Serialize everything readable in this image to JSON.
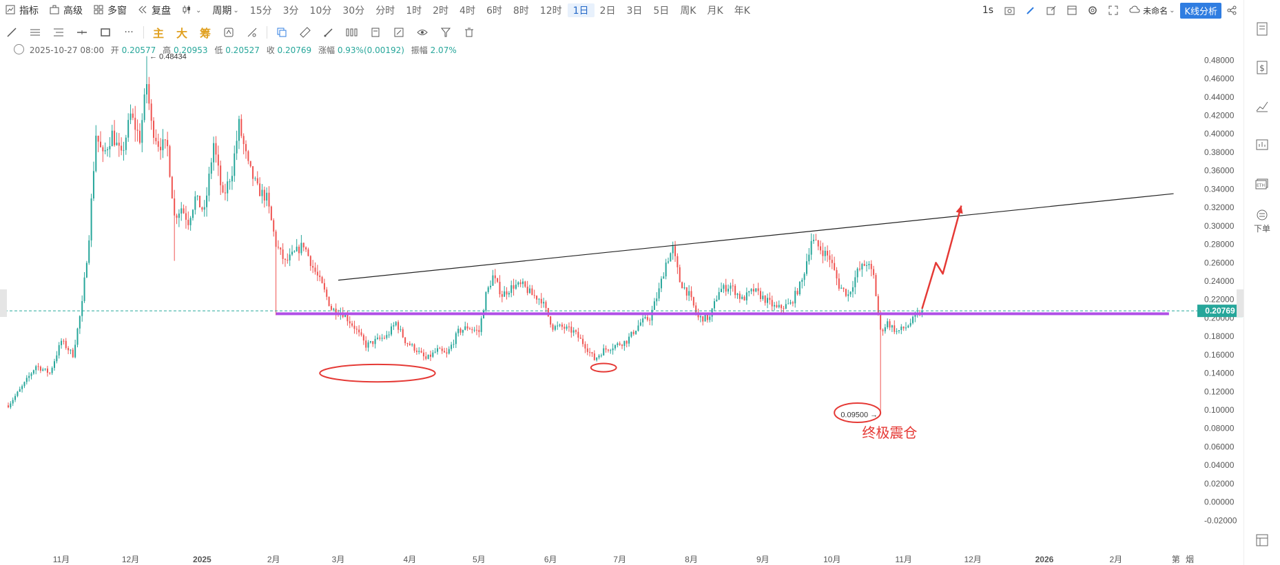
{
  "toolbar": {
    "indicator": "指标",
    "advanced": "高级",
    "multiwindow": "多窗",
    "replay": "复盘",
    "period": "周期",
    "periods": [
      "15分",
      "3分",
      "10分",
      "30分",
      "分时",
      "1时",
      "2时",
      "4时",
      "6时",
      "8时",
      "12时",
      "1日",
      "2日",
      "3日",
      "5日",
      "周K",
      "月K",
      "年K"
    ],
    "active_period": "1日",
    "interval": "1s",
    "layout_name": "未命名",
    "kline_analysis": "K线分析"
  },
  "drawing_tools": {
    "main": "主",
    "big": "大",
    "chips": "筹"
  },
  "info": {
    "datetime": "2025-10-27 08:00",
    "open_label": "开",
    "open": "0.20577",
    "high_label": "高",
    "high": "0.20953",
    "low_label": "低",
    "low": "0.20527",
    "close_label": "收",
    "close": "0.20769",
    "change_label": "涨幅",
    "change": "0.93%(0.00192)",
    "amplitude_label": "振幅",
    "amplitude": "2.07%"
  },
  "sidebar": {
    "order_label": "下单"
  },
  "colors": {
    "up": "#26a69a",
    "down": "#ef5350",
    "support": "#b04fe6",
    "annotation": "#e53935",
    "trendline": "#222222",
    "price_tag": "#26a69a"
  },
  "chart_data": {
    "type": "candlestick",
    "yticks": [
      "0.48000",
      "0.46000",
      "0.44000",
      "0.42000",
      "0.40000",
      "0.38000",
      "0.36000",
      "0.34000",
      "0.32000",
      "0.30000",
      "0.28000",
      "0.26000",
      "0.24000",
      "0.22000",
      "0.20000",
      "0.18000",
      "0.16000",
      "0.14000",
      "0.12000",
      "0.10000",
      "0.08000",
      "0.06000",
      "0.04000",
      "0.02000",
      "0.00000",
      "-0.02000"
    ],
    "ylim": [
      -0.025,
      0.49
    ],
    "xlabels": [
      {
        "label": "11月",
        "day": -55
      },
      {
        "label": "12月",
        "day": -25
      },
      {
        "label": "2025",
        "day": 6
      },
      {
        "label": "2月",
        "day": 37
      },
      {
        "label": "3月",
        "day": 65
      },
      {
        "label": "4月",
        "day": 96
      },
      {
        "label": "5月",
        "day": 126
      },
      {
        "label": "6月",
        "day": 157
      },
      {
        "label": "7月",
        "day": 187
      },
      {
        "label": "8月",
        "day": 218
      },
      {
        "label": "9月",
        "day": 249
      },
      {
        "label": "10月",
        "day": 279
      },
      {
        "label": "11月",
        "day": 310
      },
      {
        "label": "12月",
        "day": 340
      },
      {
        "label": "2026",
        "day": 371
      },
      {
        "label": "2月",
        "day": 402
      },
      {
        "label": "第",
        "day": 428
      },
      {
        "label": "烟",
        "day": 434
      }
    ],
    "current_price": "0.20769",
    "high_marker": "← 0.48434",
    "low_marker": "0.09500 →",
    "price_path": [
      {
        "d": -78,
        "p": 0.105
      },
      {
        "d": -72,
        "p": 0.125
      },
      {
        "d": -66,
        "p": 0.148
      },
      {
        "d": -60,
        "p": 0.14
      },
      {
        "d": -55,
        "p": 0.175
      },
      {
        "d": -50,
        "p": 0.16
      },
      {
        "d": -46,
        "p": 0.215
      },
      {
        "d": -43,
        "p": 0.29
      },
      {
        "d": -40,
        "p": 0.4
      },
      {
        "d": -37,
        "p": 0.375
      },
      {
        "d": -33,
        "p": 0.4
      },
      {
        "d": -29,
        "p": 0.375
      },
      {
        "d": -25,
        "p": 0.42
      },
      {
        "d": -21,
        "p": 0.395
      },
      {
        "d": -18,
        "p": 0.455
      },
      {
        "d": -16,
        "p": 0.41
      },
      {
        "d": -13,
        "p": 0.39
      },
      {
        "d": -9,
        "p": 0.385
      },
      {
        "d": -6,
        "p": 0.31
      },
      {
        "d": -3,
        "p": 0.32
      },
      {
        "d": 0,
        "p": 0.305
      },
      {
        "d": 3,
        "p": 0.33
      },
      {
        "d": 7,
        "p": 0.315
      },
      {
        "d": 11,
        "p": 0.39
      },
      {
        "d": 15,
        "p": 0.33
      },
      {
        "d": 19,
        "p": 0.36
      },
      {
        "d": 22,
        "p": 0.41
      },
      {
        "d": 26,
        "p": 0.365
      },
      {
        "d": 30,
        "p": 0.34
      },
      {
        "d": 34,
        "p": 0.33
      },
      {
        "d": 38,
        "p": 0.28
      },
      {
        "d": 42,
        "p": 0.26
      },
      {
        "d": 46,
        "p": 0.27
      },
      {
        "d": 50,
        "p": 0.28
      },
      {
        "d": 54,
        "p": 0.255
      },
      {
        "d": 58,
        "p": 0.235
      },
      {
        "d": 62,
        "p": 0.21
      },
      {
        "d": 67,
        "p": 0.205
      },
      {
        "d": 72,
        "p": 0.19
      },
      {
        "d": 77,
        "p": 0.17
      },
      {
        "d": 81,
        "p": 0.175
      },
      {
        "d": 86,
        "p": 0.18
      },
      {
        "d": 90,
        "p": 0.195
      },
      {
        "d": 94,
        "p": 0.175
      },
      {
        "d": 99,
        "p": 0.165
      },
      {
        "d": 103,
        "p": 0.155
      },
      {
        "d": 108,
        "p": 0.165
      },
      {
        "d": 112,
        "p": 0.16
      },
      {
        "d": 117,
        "p": 0.185
      },
      {
        "d": 121,
        "p": 0.19
      },
      {
        "d": 126,
        "p": 0.185
      },
      {
        "d": 129,
        "p": 0.225
      },
      {
        "d": 132,
        "p": 0.245
      },
      {
        "d": 136,
        "p": 0.225
      },
      {
        "d": 141,
        "p": 0.235
      },
      {
        "d": 145,
        "p": 0.235
      },
      {
        "d": 149,
        "p": 0.225
      },
      {
        "d": 153,
        "p": 0.22
      },
      {
        "d": 158,
        "p": 0.19
      },
      {
        "d": 162,
        "p": 0.19
      },
      {
        "d": 167,
        "p": 0.185
      },
      {
        "d": 172,
        "p": 0.17
      },
      {
        "d": 176,
        "p": 0.155
      },
      {
        "d": 180,
        "p": 0.165
      },
      {
        "d": 185,
        "p": 0.17
      },
      {
        "d": 190,
        "p": 0.175
      },
      {
        "d": 196,
        "p": 0.195
      },
      {
        "d": 200,
        "p": 0.2
      },
      {
        "d": 204,
        "p": 0.23
      },
      {
        "d": 207,
        "p": 0.26
      },
      {
        "d": 210,
        "p": 0.275
      },
      {
        "d": 213,
        "p": 0.24
      },
      {
        "d": 217,
        "p": 0.225
      },
      {
        "d": 221,
        "p": 0.2
      },
      {
        "d": 226,
        "p": 0.2
      },
      {
        "d": 230,
        "p": 0.23
      },
      {
        "d": 235,
        "p": 0.235
      },
      {
        "d": 240,
        "p": 0.22
      },
      {
        "d": 245,
        "p": 0.23
      },
      {
        "d": 250,
        "p": 0.22
      },
      {
        "d": 255,
        "p": 0.21
      },
      {
        "d": 261,
        "p": 0.215
      },
      {
        "d": 266,
        "p": 0.24
      },
      {
        "d": 270,
        "p": 0.285
      },
      {
        "d": 274,
        "p": 0.275
      },
      {
        "d": 278,
        "p": 0.265
      },
      {
        "d": 282,
        "p": 0.235
      },
      {
        "d": 286,
        "p": 0.225
      },
      {
        "d": 290,
        "p": 0.25
      },
      {
        "d": 294,
        "p": 0.26
      },
      {
        "d": 297,
        "p": 0.245
      },
      {
        "d": 300,
        "p": 0.185
      },
      {
        "d": 303,
        "p": 0.195
      },
      {
        "d": 307,
        "p": 0.185
      },
      {
        "d": 311,
        "p": 0.19
      },
      {
        "d": 315,
        "p": 0.2
      },
      {
        "d": 318,
        "p": 0.208
      }
    ],
    "annotations": {
      "text": "终极震仓",
      "resistance_line": {
        "d1": 65,
        "p1": 0.241,
        "d2": 427,
        "p2": 0.335
      },
      "support_line": {
        "d1": 38,
        "p1": 0.2045,
        "d2": 425,
        "p2": 0.2045
      },
      "arrow_path": [
        {
          "d": 318,
          "p": 0.21
        },
        {
          "d": 324,
          "p": 0.26
        },
        {
          "d": 327,
          "p": 0.248
        },
        {
          "d": 335,
          "p": 0.322
        }
      ],
      "ellipses": [
        {
          "d": 82,
          "p": 0.14,
          "rd": 25,
          "rp": 0.0095
        },
        {
          "d": 180,
          "p": 0.146,
          "rd": 5.5,
          "rp": 0.0045
        },
        {
          "d": 290,
          "p": 0.097,
          "rd": 10,
          "rp": 0.0105
        }
      ]
    }
  }
}
